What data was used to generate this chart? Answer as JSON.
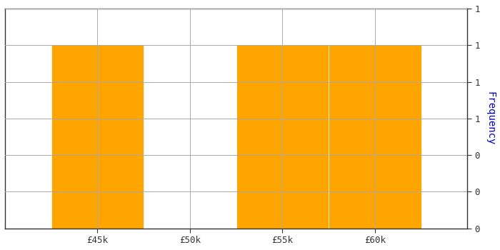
{
  "bin_edges": [
    42500,
    47500,
    52500,
    57500,
    62500
  ],
  "frequencies": [
    1,
    0,
    1,
    1
  ],
  "bar_color": "#FFA500",
  "bar_edgecolor": "#FFFFFF",
  "ylabel": "Frequency",
  "xlabel": "",
  "xlim": [
    40000,
    65000
  ],
  "ylim": [
    0,
    1.2
  ],
  "xtick_positions": [
    45000,
    50000,
    55000,
    60000
  ],
  "xtick_labels": [
    "£45k",
    "£50k",
    "£55k",
    "£60k"
  ],
  "grid_color": "#AAAAAA",
  "background_color": "#FFFFFF",
  "ylabel_color": "#0000CD",
  "ytick_color": "#CC0000",
  "xtick_color": "#4444AA"
}
